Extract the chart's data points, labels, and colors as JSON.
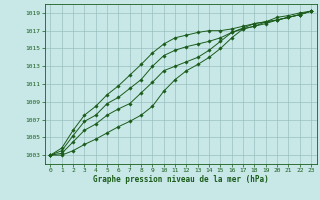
{
  "xlabel": "Graphe pression niveau de la mer (hPa)",
  "bg_color": "#c8e8e8",
  "grid_color": "#9bbfbf",
  "line_color": "#1a5c1a",
  "xlim": [
    -0.5,
    23.5
  ],
  "ylim": [
    1002.0,
    1020.0
  ],
  "yticks": [
    1003,
    1005,
    1007,
    1009,
    1011,
    1013,
    1015,
    1017,
    1019
  ],
  "xticks": [
    0,
    1,
    2,
    3,
    4,
    5,
    6,
    7,
    8,
    9,
    10,
    11,
    12,
    13,
    14,
    15,
    16,
    17,
    18,
    19,
    20,
    21,
    22,
    23
  ],
  "lines": [
    [
      1003.0,
      1003.0,
      1003.5,
      1004.2,
      1004.8,
      1005.5,
      1006.2,
      1006.8,
      1007.5,
      1008.5,
      1010.2,
      1011.5,
      1012.5,
      1013.2,
      1014.0,
      1015.0,
      1016.2,
      1017.2,
      1017.5,
      1018.0,
      1018.5,
      1018.7,
      1019.0,
      1019.2
    ],
    [
      1003.0,
      1003.2,
      1004.5,
      1005.8,
      1006.5,
      1007.5,
      1008.2,
      1008.8,
      1010.0,
      1011.2,
      1012.5,
      1013.0,
      1013.5,
      1014.0,
      1014.8,
      1015.8,
      1016.8,
      1017.2,
      1017.5,
      1017.8,
      1018.2,
      1018.5,
      1018.8,
      1019.2
    ],
    [
      1003.0,
      1003.5,
      1005.2,
      1006.8,
      1007.5,
      1008.8,
      1009.5,
      1010.5,
      1011.5,
      1013.0,
      1014.2,
      1014.8,
      1015.2,
      1015.5,
      1015.8,
      1016.2,
      1016.8,
      1017.3,
      1017.8,
      1018.0,
      1018.2,
      1018.5,
      1018.8,
      1019.2
    ],
    [
      1003.0,
      1003.8,
      1005.8,
      1007.5,
      1008.5,
      1009.8,
      1010.8,
      1012.0,
      1013.2,
      1014.5,
      1015.5,
      1016.2,
      1016.5,
      1016.8,
      1017.0,
      1017.0,
      1017.2,
      1017.5,
      1017.8,
      1018.0,
      1018.2,
      1018.5,
      1018.8,
      1019.2
    ]
  ]
}
